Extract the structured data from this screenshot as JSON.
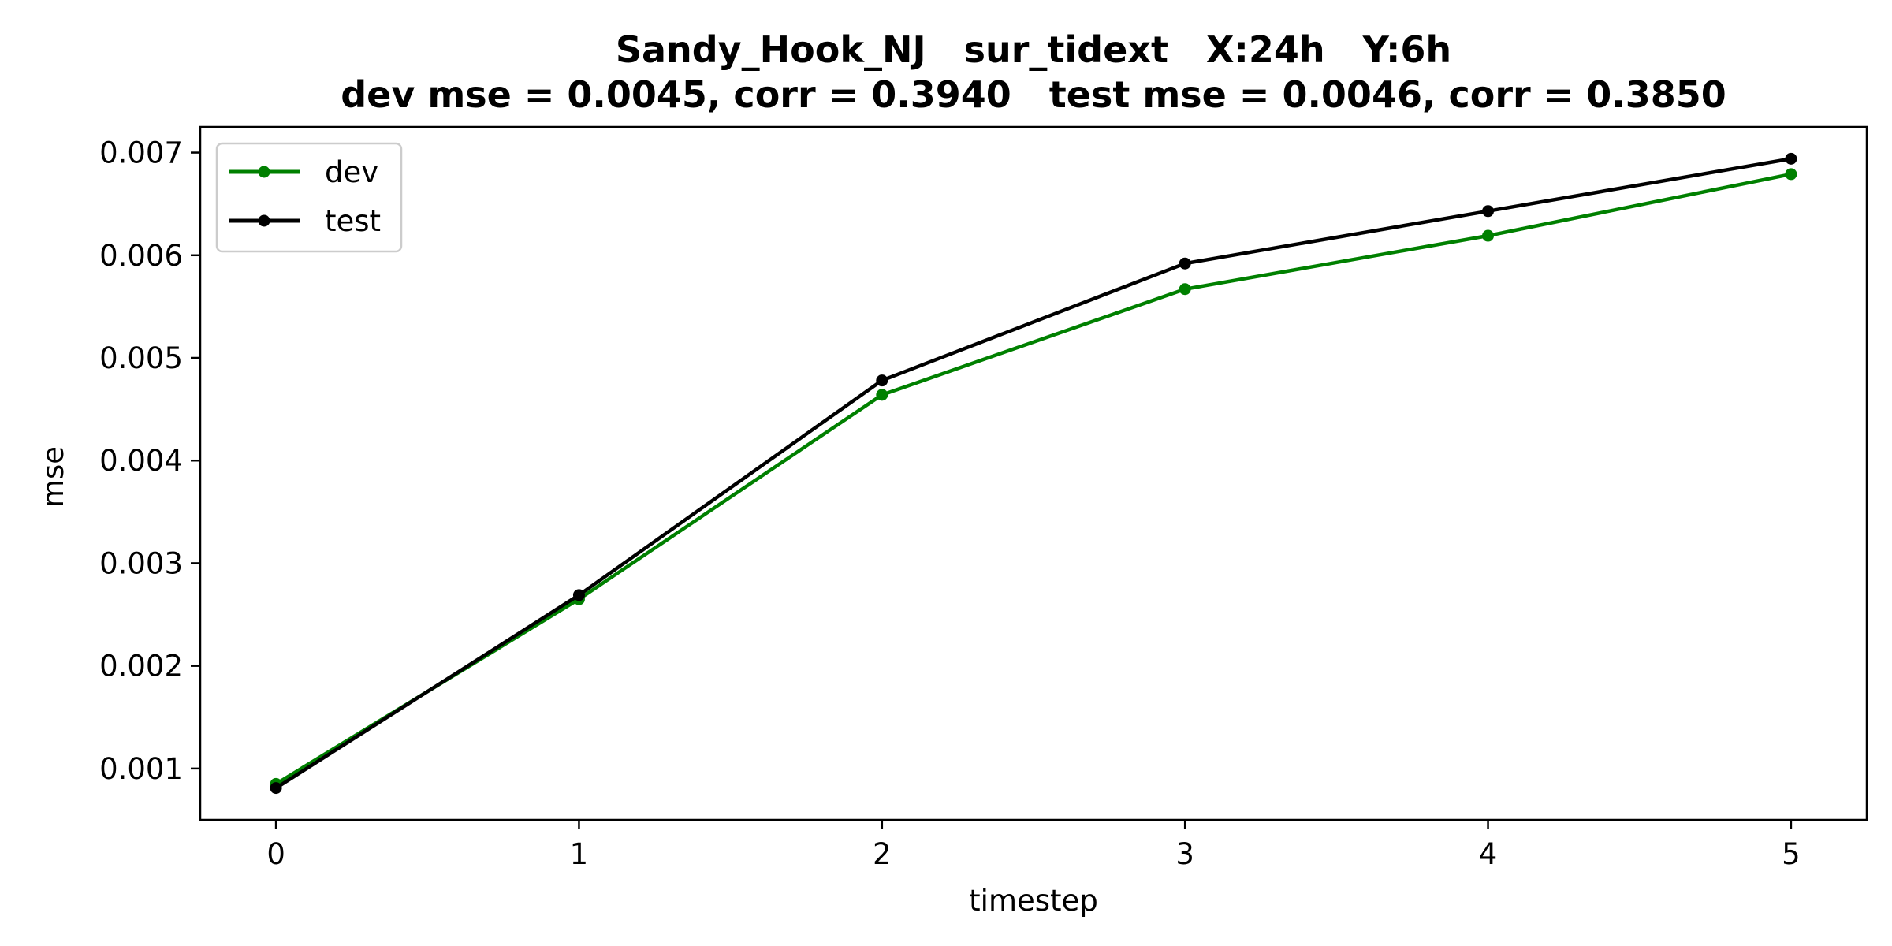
{
  "chart_data": {
    "type": "line",
    "title": "Sandy_Hook_NJ   sur_tidext   X:24h   Y:6h",
    "subtitle": "dev mse = 0.0045, corr = 0.3940   test mse = 0.0046, corr = 0.3850",
    "xlabel": "timestep",
    "ylabel": "mse",
    "x": [
      0,
      1,
      2,
      3,
      4,
      5
    ],
    "x_ticks": [
      "0",
      "1",
      "2",
      "3",
      "4",
      "5"
    ],
    "y_ticks": [
      "0.001",
      "0.002",
      "0.003",
      "0.004",
      "0.005",
      "0.006",
      "0.007"
    ],
    "y_tick_values": [
      0.001,
      0.002,
      0.003,
      0.004,
      0.005,
      0.006,
      0.007
    ],
    "xlim": [
      -0.25,
      5.25
    ],
    "ylim": [
      0.0005,
      0.00725
    ],
    "grid": false,
    "legend_position": "upper-left",
    "series": [
      {
        "name": "dev",
        "color": "#008000",
        "values": [
          0.00085,
          0.00265,
          0.00464,
          0.00567,
          0.00619,
          0.00679
        ]
      },
      {
        "name": "test",
        "color": "#000000",
        "values": [
          0.00081,
          0.00269,
          0.00478,
          0.00592,
          0.00643,
          0.00694
        ]
      }
    ]
  }
}
